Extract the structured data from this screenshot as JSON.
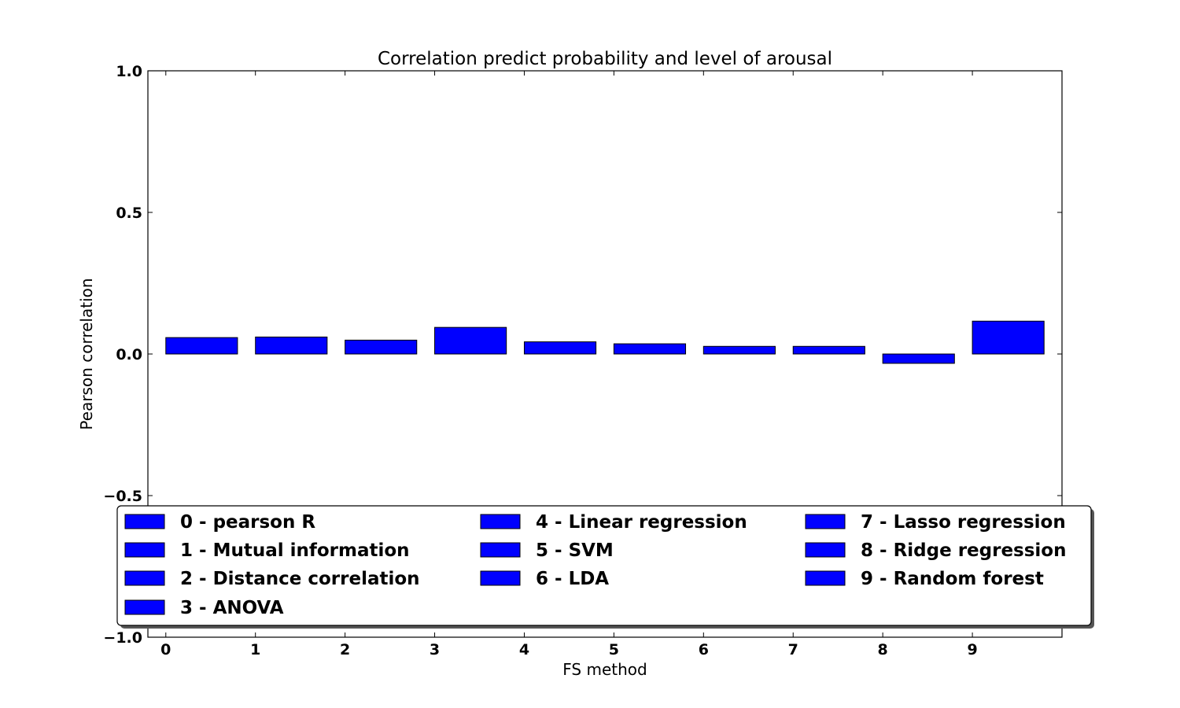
{
  "chart_data": {
    "type": "bar",
    "title": "Correlation predict probability and level of arousal",
    "xlabel": "FS method",
    "ylabel": "Pearson correlation",
    "categories": [
      "0",
      "1",
      "2",
      "3",
      "4",
      "5",
      "6",
      "7",
      "8",
      "9"
    ],
    "values": [
      0.058,
      0.06,
      0.049,
      0.094,
      0.043,
      0.036,
      0.027,
      0.027,
      -0.033,
      0.116
    ],
    "ylim": [
      -1.0,
      1.0
    ],
    "xlim": [
      -0.2,
      10.0
    ],
    "bar_width": 0.8,
    "yticks": [
      "1.0",
      "0.5",
      "0.0",
      "−0.5",
      "−1.0"
    ],
    "ytick_values": [
      1.0,
      0.5,
      0.0,
      -0.5,
      -1.0
    ],
    "xtick_values": [
      0,
      1,
      2,
      3,
      4,
      5,
      6,
      7,
      8,
      9
    ],
    "grid": false,
    "bar_color": "#0000ff",
    "legend": {
      "placement": "bottom",
      "columns": 3,
      "entries": [
        "0 - pearson R",
        "1 - Mutual information",
        "2 - Distance correlation",
        "3 - ANOVA",
        "4 - Linear regression",
        "5 - SVM",
        "6 - LDA",
        "7 - Lasso regression",
        "8 - Ridge regression",
        "9 - Random forest"
      ]
    }
  }
}
